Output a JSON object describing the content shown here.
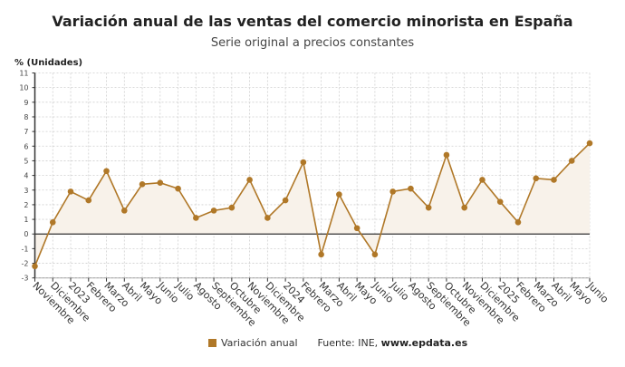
{
  "chart_data": {
    "type": "line",
    "title": "Variación anual de las ventas del comercio minorista en España",
    "subtitle": "Serie original a precios constantes",
    "ylabel": "% (Unidades)",
    "xlabel": "",
    "ylim": [
      -3,
      11
    ],
    "yticks": [
      -3,
      -2,
      -1,
      0,
      1,
      2,
      3,
      4,
      5,
      6,
      7,
      8,
      9,
      10,
      11
    ],
    "grid": true,
    "legend_position": "bottom",
    "categories": [
      "Noviembre",
      "Diciembre",
      "2023",
      "Febrero",
      "Marzo",
      "Abril",
      "Mayo",
      "Junio",
      "Julio",
      "Agosto",
      "Septiembre",
      "Octubre",
      "Noviembre",
      "Diciembre",
      "2024",
      "Febrero",
      "Marzo",
      "Abril",
      "Mayo",
      "Junio",
      "Julio",
      "Agosto",
      "Septiembre",
      "Octubre",
      "Noviembre",
      "Diciembre",
      "2025",
      "Febrero",
      "Marzo",
      "Abril",
      "Mayo",
      "Junio"
    ],
    "series": [
      {
        "name": "Variación anual",
        "color": "#b07828",
        "values": [
          -2.2,
          0.8,
          2.9,
          2.3,
          4.3,
          1.6,
          3.4,
          3.5,
          3.1,
          1.1,
          1.6,
          1.8,
          3.7,
          1.1,
          2.3,
          4.9,
          -1.4,
          2.7,
          0.4,
          -1.4,
          2.9,
          3.1,
          1.8,
          5.4,
          1.8,
          3.7,
          2.2,
          0.8,
          3.8,
          3.7,
          5.0,
          6.2
        ]
      }
    ]
  },
  "legend": {
    "label": "Variación anual",
    "source_prefix": "Fuente: INE, ",
    "source_site": "www.epdata.es"
  }
}
